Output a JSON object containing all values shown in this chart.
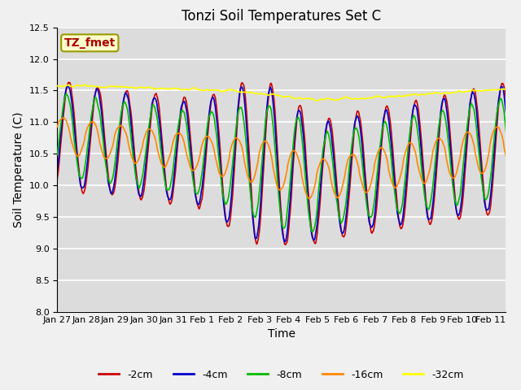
{
  "title": "Tonzi Soil Temperatures Set C",
  "xlabel": "Time",
  "ylabel": "Soil Temperature (C)",
  "ylim": [
    8.0,
    12.5
  ],
  "colors": {
    "-2cm": "#cc0000",
    "-4cm": "#0000cc",
    "-8cm": "#00bb00",
    "-16cm": "#ff8800",
    "-32cm": "#ffff00"
  },
  "annotation_text": "TZ_fmet",
  "annotation_color": "#aa0000",
  "annotation_bg": "#ffffcc",
  "plot_bg": "#dcdcdc",
  "fig_bg": "#f0f0f0",
  "grid_color": "#ffffff",
  "title_fontsize": 12,
  "axis_fontsize": 10,
  "tick_fontsize": 8,
  "line_width": 1.2,
  "tick_labels": [
    "Jan 27",
    "Jan 28",
    "Jan 29",
    "Jan 30",
    "Jan 31",
    "Feb 1",
    "Feb 2",
    "Feb 3",
    "Feb 4",
    "Feb 5",
    "Feb 6",
    "Feb 7",
    "Feb 8",
    "Feb 9",
    "Feb 10",
    "Feb 11"
  ]
}
